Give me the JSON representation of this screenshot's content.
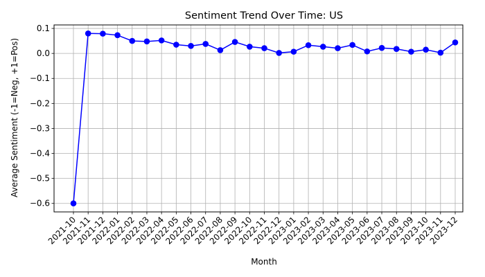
{
  "chart_data": {
    "type": "line",
    "title": "Sentiment Trend Over Time: US",
    "xlabel": "Month",
    "ylabel": "Average Sentiment (-1=Neg, +1=Pos)",
    "categories": [
      "2021-10",
      "2021-11",
      "2021-12",
      "2022-01",
      "2022-02",
      "2022-03",
      "2022-04",
      "2022-05",
      "2022-06",
      "2022-07",
      "2022-08",
      "2022-09",
      "2022-10",
      "2022-11",
      "2022-12",
      "2023-01",
      "2023-02",
      "2023-03",
      "2023-04",
      "2023-05",
      "2023-06",
      "2023-07",
      "2023-08",
      "2023-09",
      "2023-10",
      "2023-11",
      "2023-12"
    ],
    "series": [
      {
        "values": [
          -0.6,
          0.08,
          0.079,
          0.073,
          0.05,
          0.048,
          0.052,
          0.035,
          0.03,
          0.038,
          0.013,
          0.046,
          0.027,
          0.021,
          0.002,
          0.007,
          0.033,
          0.027,
          0.021,
          0.034,
          0.008,
          0.022,
          0.018,
          0.007,
          0.015,
          0.003,
          0.044
        ],
        "color": "#0000ff"
      }
    ],
    "y_ticks": [
      "0.1",
      "0.0",
      "−0.1",
      "−0.2",
      "−0.3",
      "−0.4",
      "−0.5",
      "−0.6"
    ],
    "y_tick_values": [
      0.1,
      0.0,
      -0.1,
      -0.2,
      -0.3,
      -0.4,
      -0.5,
      -0.6
    ],
    "ylim": [
      -0.634,
      0.114
    ],
    "grid": true,
    "marker": "circle"
  }
}
